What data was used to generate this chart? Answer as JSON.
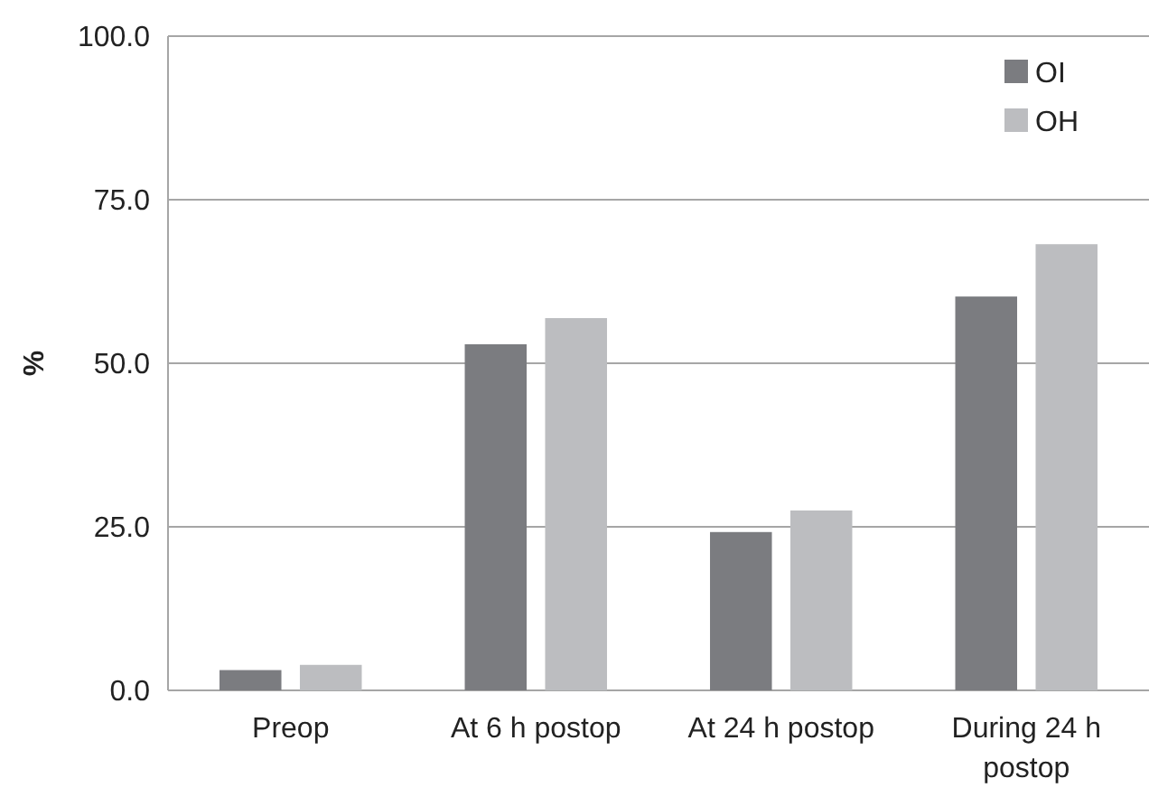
{
  "chart_data": {
    "type": "bar",
    "ylabel": "%",
    "categories": [
      "Preop",
      "At 6 h postop",
      "At 24 h postop",
      "During 24 h postop"
    ],
    "series": [
      {
        "name": "OI",
        "color": "#7b7c80",
        "values": [
          3.1,
          52.9,
          24.2,
          60.2
        ]
      },
      {
        "name": "OH",
        "color": "#bcbdc0",
        "values": [
          3.9,
          56.9,
          27.5,
          68.2
        ]
      }
    ],
    "ylim": [
      0,
      100
    ],
    "yticks": [
      {
        "value": 0,
        "label": "0.0"
      },
      {
        "value": 25,
        "label": "25.0"
      },
      {
        "value": 50,
        "label": "50.0"
      },
      {
        "value": 75,
        "label": "75.0"
      },
      {
        "value": 100,
        "label": "100.0"
      }
    ],
    "grid": "y",
    "legend": "top right"
  }
}
